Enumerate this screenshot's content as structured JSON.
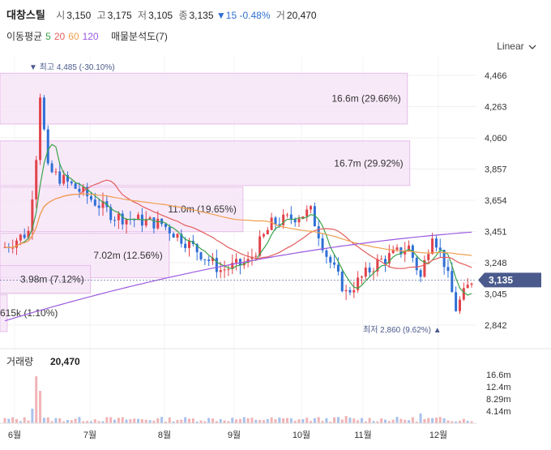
{
  "header": {
    "name": "대창스틸",
    "open_label": "시",
    "open": "3,150",
    "high_label": "고",
    "high": "3,175",
    "low_label": "저",
    "low": "3,105",
    "close_label": "종",
    "close": "3,135",
    "change_arrow": "▼",
    "change": "15",
    "change_pct": "-0.48%",
    "volume_label": "거",
    "volume": "20,470"
  },
  "ma_legend": {
    "label": "이동평균",
    "p5": "5",
    "p20": "20",
    "p60": "60",
    "p120": "120",
    "p5_color": "#3aa34a",
    "p20_color": "#e35d5d",
    "p60_color": "#f0a050",
    "p120_color": "#9b59e0",
    "profile_label": "매물분석도(7)"
  },
  "scale_toggle": {
    "label": "Linear",
    "icon": "chevron-down-icon"
  },
  "colors": {
    "up": "#e2434b",
    "down": "#2f6fd6",
    "profile": "#f6e2f7",
    "profile_border": "#e6bde9",
    "price_tag": "#4a5a8c"
  },
  "chart_data": {
    "type": "candlestick",
    "y_ticks": [
      "4,466",
      "4,263",
      "4,060",
      "3,857",
      "3,654",
      "3,451",
      "3,248",
      "3,045",
      "2,842"
    ],
    "y_range": [
      2760,
      4560
    ],
    "x_ticks": [
      "6월",
      "7월",
      "8월",
      "9월",
      "10월",
      "11월",
      "12월"
    ],
    "current_price": "3,135",
    "max_label": "최고 4,485 (-30.10%)",
    "min_label": "최저 2,860 (9.62%)",
    "volume_profile": [
      {
        "label": "16.6m (29.66%)",
        "lo": 4150,
        "hi": 4480,
        "frac": 0.855
      },
      {
        "label": "16.7m (29.92%)",
        "lo": 3750,
        "hi": 4040,
        "frac": 0.86
      },
      {
        "label": "11.0m (19.65%)",
        "lo": 3450,
        "hi": 3740,
        "frac": 0.51
      },
      {
        "label": "7.02m (12.56%)",
        "lo": 3150,
        "hi": 3440,
        "frac": 0.355
      },
      {
        "label": "3.98m (7.12%)",
        "lo": 3050,
        "hi": 3230,
        "frac": 0.19
      },
      {
        "label": "615k (1.10%)",
        "lo": 2800,
        "hi": 3040,
        "frac": 0.015
      }
    ],
    "volume_title": "거래량",
    "volume_value": "20,470",
    "volume_ticks": [
      "16.6m",
      "12.4m",
      "8.29m",
      "4.14m"
    ]
  }
}
